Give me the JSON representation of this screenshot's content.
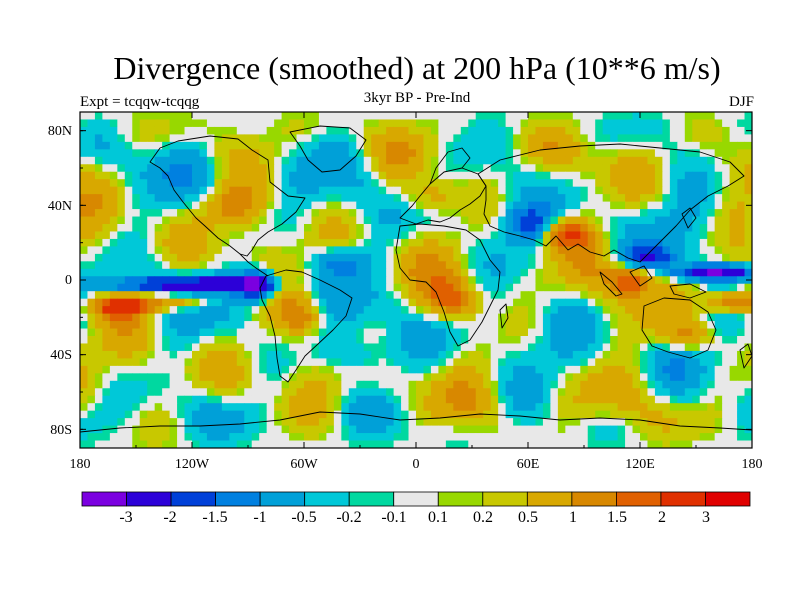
{
  "title": "Divergence (smoothed) at 200 hPa (10**6 m/s)",
  "subtitle": "3kyr BP - Pre-Ind",
  "left_label": "Expt = tcqqw-tcqqg",
  "right_label": "DJF",
  "colors": {
    "frame": "#000000",
    "coast": "#000000",
    "background": "#ffffff"
  },
  "chart_data": {
    "type": "heatmap",
    "title": "Divergence (smoothed) at 200 hPa (10**6 m/s)",
    "subtitle": "3kyr BP - Pre-Ind",
    "x_range": [
      -180,
      180
    ],
    "y_range": [
      -90,
      90
    ],
    "x_ticks": [
      {
        "value": -180,
        "label": "180"
      },
      {
        "value": -120,
        "label": "120W"
      },
      {
        "value": -60,
        "label": "60W"
      },
      {
        "value": 0,
        "label": "0"
      },
      {
        "value": 60,
        "label": "60E"
      },
      {
        "value": 120,
        "label": "120E"
      },
      {
        "value": 180,
        "label": "180"
      }
    ],
    "y_ticks": [
      {
        "value": 80,
        "label": "80N"
      },
      {
        "value": 40,
        "label": "40N"
      },
      {
        "value": 0,
        "label": "0"
      },
      {
        "value": -40,
        "label": "40S"
      },
      {
        "value": -80,
        "label": "80S"
      }
    ],
    "colorbar": {
      "colors": [
        "#7b00e0",
        "#2c00d8",
        "#0040d8",
        "#0080e0",
        "#00a0d8",
        "#00c8d8",
        "#00d8a0",
        "#e8e8e8",
        "#98d800",
        "#c8c800",
        "#d8a800",
        "#d88800",
        "#e06000",
        "#e03000",
        "#e00000"
      ],
      "tick_labels": [
        "-3",
        "-2",
        "-1.5",
        "-1",
        "-0.5",
        "-0.2",
        "-0.1",
        "0.1",
        "0.2",
        "0.5",
        "1",
        "1.5",
        "2",
        "3"
      ]
    },
    "features": [
      {
        "lon": -85,
        "lat": -3,
        "amp": -3.2,
        "sx": 10,
        "sy": 8
      },
      {
        "lon": -110,
        "lat": -2,
        "amp": -2.0,
        "sx": 30,
        "sy": 4
      },
      {
        "lon": -150,
        "lat": -3,
        "amp": -1.4,
        "sx": 25,
        "sy": 4
      },
      {
        "lon": 160,
        "lat": 4,
        "amp": -3.0,
        "sx": 22,
        "sy": 4
      },
      {
        "lon": 125,
        "lat": 12,
        "amp": -1.6,
        "sx": 15,
        "sy": 6
      },
      {
        "lon": -130,
        "lat": -12,
        "amp": 1.6,
        "sx": 22,
        "sy": 5
      },
      {
        "lon": -160,
        "lat": -15,
        "amp": 1.8,
        "sx": 15,
        "sy": 6
      },
      {
        "lon": 170,
        "lat": -12,
        "amp": 2.0,
        "sx": 15,
        "sy": 6
      },
      {
        "lon": 115,
        "lat": 0,
        "amp": 1.8,
        "sx": 12,
        "sy": 8
      },
      {
        "lon": 80,
        "lat": 25,
        "amp": 2.0,
        "sx": 12,
        "sy": 8
      },
      {
        "lon": 20,
        "lat": -10,
        "amp": 1.4,
        "sx": 15,
        "sy": 10
      },
      {
        "lon": -40,
        "lat": 10,
        "amp": -1.2,
        "sx": 15,
        "sy": 8
      },
      {
        "lon": 60,
        "lat": 30,
        "amp": -1.3,
        "sx": 12,
        "sy": 8
      },
      {
        "lon": -60,
        "lat": -20,
        "amp": 1.2,
        "sx": 12,
        "sy": 10
      },
      {
        "lon": 145,
        "lat": -30,
        "amp": 1.3,
        "sx": 15,
        "sy": 8
      },
      {
        "lon": -100,
        "lat": 40,
        "amp": 1.0,
        "sx": 20,
        "sy": 10
      },
      {
        "lon": 10,
        "lat": 45,
        "amp": 1.0,
        "sx": 15,
        "sy": 10
      },
      {
        "lon": -30,
        "lat": -40,
        "amp": -0.8,
        "sx": 20,
        "sy": 10
      }
    ]
  }
}
